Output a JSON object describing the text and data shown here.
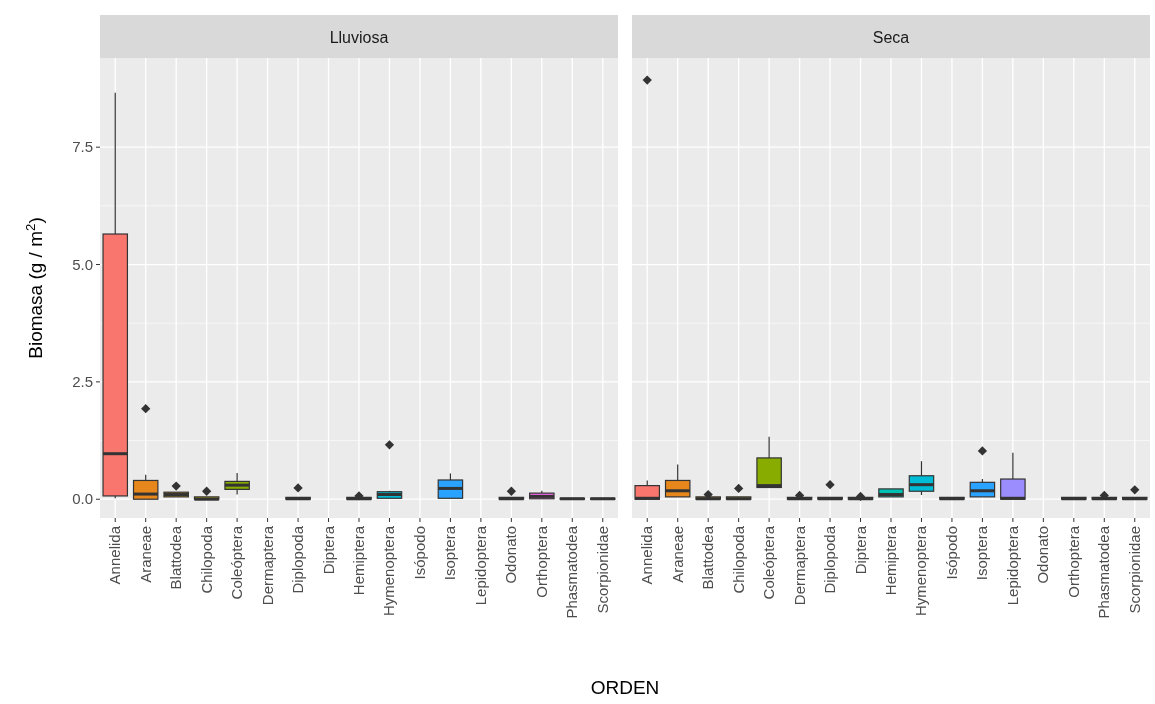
{
  "chart_data": [
    {
      "type": "box",
      "title": "Lluviosa",
      "ylabel": "Biomasa (g / m$^{2}$)",
      "xlabel": "ORDEN",
      "marker": "diamond",
      "grid": true,
      "ylim": [
        -0.4,
        9.4
      ],
      "yticks": [
        {
          "value": 0,
          "label": "0.0"
        },
        2.5,
        {
          "value": 5,
          "label": "5.0"
        },
        7.5
      ],
      "categories": [
        "Annelida",
        "Araneae",
        "Blattodea",
        "Chilopoda",
        "Coleóptera",
        "Dermaptera",
        "Diplopoda",
        "Diptera",
        "Hemiptera",
        "Hymenoptera",
        "Isópodo",
        "Isoptera",
        "Lepidoptera",
        "Odonato",
        "Orthoptera",
        "Phasmatodea",
        "Scorpionidae"
      ],
      "colors": [
        "#f8766d",
        "#e7861b",
        "#d09400",
        "#b2a100",
        "#89ac00",
        null,
        "#00bc51",
        null,
        "#00c0b2",
        "#00bcd6",
        null,
        "#29a3ff",
        null,
        "#d277ff",
        "#f166e8",
        "#ff61c7",
        "#ff689e"
      ],
      "boxes": [
        {
          "low": 0.02,
          "q1": 0.07,
          "median": 0.97,
          "q3": 5.65,
          "high": 8.66
        },
        {
          "low": 0,
          "q1": 0,
          "median": 0.11,
          "q3": 0.4,
          "high": 0.52,
          "outliers": [
            1.93
          ]
        },
        {
          "low": 0.05,
          "q1": 0.05,
          "median": 0.1,
          "q3": 0.15,
          "high": 0.15,
          "outliers": [
            0.28
          ]
        },
        {
          "low": 0,
          "q1": 0,
          "median": 0,
          "q3": 0.05,
          "high": 0.05,
          "outliers": [
            0.17
          ]
        },
        {
          "low": 0.1,
          "q1": 0.21,
          "median": 0.3,
          "q3": 0.38,
          "high": 0.56
        },
        null,
        {
          "low": 0,
          "q1": 0,
          "median": 0.01,
          "q3": 0.04,
          "high": 0.04,
          "outliers": [
            0.24
          ]
        },
        null,
        {
          "low": 0,
          "q1": 0,
          "median": 0.01,
          "q3": 0.04,
          "high": 0.04,
          "outliers": [
            0.07
          ]
        },
        {
          "low": 0.02,
          "q1": 0.02,
          "median": 0.1,
          "q3": 0.16,
          "high": 0.18,
          "outliers": [
            1.16
          ]
        },
        null,
        {
          "low": 0.02,
          "q1": 0.02,
          "median": 0.23,
          "q3": 0.41,
          "high": 0.55
        },
        null,
        {
          "low": 0,
          "q1": 0,
          "median": 0.01,
          "q3": 0.04,
          "high": 0.04,
          "outliers": [
            0.17
          ]
        },
        {
          "low": 0.01,
          "q1": 0.01,
          "median": 0.06,
          "q3": 0.13,
          "high": 0.18
        },
        {
          "low": 0,
          "q1": 0,
          "median": 0.01,
          "q3": 0.02,
          "high": 0.02
        },
        {
          "low": 0,
          "q1": 0,
          "median": 0.01,
          "q3": 0.02,
          "high": 0.02
        }
      ]
    },
    {
      "type": "box",
      "title": "Seca",
      "marker": "diamond",
      "grid": true,
      "tick_labels": "x",
      "ylim": [
        -0.4,
        9.4
      ],
      "yticks": [
        0,
        2.5,
        5,
        7.5
      ],
      "categories": [
        "Annelida",
        "Araneae",
        "Blattodea",
        "Chilopoda",
        "Coleóptera",
        "Dermaptera",
        "Diplopoda",
        "Diptera",
        "Hemiptera",
        "Hymenoptera",
        "Isópodo",
        "Isoptera",
        "Lepidoptera",
        "Odonato",
        "Orthoptera",
        "Phasmatodea",
        "Scorpionidae"
      ],
      "colors": [
        "#f8766d",
        "#e7861b",
        "#d09400",
        "#b2a100",
        "#89ac00",
        "#45b500",
        "#00bc51",
        "#00c087",
        "#00c0b2",
        "#00bcd6",
        "#00b3f2",
        "#29a3ff",
        "#9c8dff",
        null,
        "#f166e8",
        "#ff61c7",
        "#ff689e"
      ],
      "boxes": [
        {
          "low": 0,
          "q1": 0,
          "median": 0.02,
          "q3": 0.29,
          "high": 0.4,
          "outliers": [
            8.93
          ]
        },
        {
          "low": 0.05,
          "q1": 0.05,
          "median": 0.18,
          "q3": 0.4,
          "high": 0.74
        },
        {
          "low": 0,
          "q1": 0,
          "median": 0.01,
          "q3": 0.05,
          "high": 0.05,
          "outliers": [
            0.1
          ]
        },
        {
          "low": 0,
          "q1": 0,
          "median": 0.01,
          "q3": 0.05,
          "high": 0.05,
          "outliers": [
            0.23
          ]
        },
        {
          "low": 0.25,
          "q1": 0.25,
          "median": 0.29,
          "q3": 0.88,
          "high": 1.33
        },
        {
          "low": 0,
          "q1": 0,
          "median": 0.01,
          "q3": 0.04,
          "high": 0.04,
          "outliers": [
            0.08
          ]
        },
        {
          "low": 0,
          "q1": 0,
          "median": 0.01,
          "q3": 0.04,
          "high": 0.04,
          "outliers": [
            0.31
          ]
        },
        {
          "low": 0,
          "q1": 0,
          "median": 0.01,
          "q3": 0.04,
          "high": 0.04,
          "outliers": [
            0.06
          ]
        },
        {
          "low": 0.05,
          "q1": 0.05,
          "median": 0.1,
          "q3": 0.22,
          "high": 0.22
        },
        {
          "low": 0.09,
          "q1": 0.17,
          "median": 0.31,
          "q3": 0.5,
          "high": 0.81
        },
        {
          "low": 0,
          "q1": 0,
          "median": 0.01,
          "q3": 0.04,
          "high": 0.05
        },
        {
          "low": 0.05,
          "q1": 0.05,
          "median": 0.18,
          "q3": 0.36,
          "high": 0.43,
          "outliers": [
            1.03
          ]
        },
        {
          "low": 0,
          "q1": 0,
          "median": 0.02,
          "q3": 0.43,
          "high": 0.99
        },
        null,
        {
          "low": 0,
          "q1": 0,
          "median": 0.01,
          "q3": 0.04,
          "high": 0.05
        },
        {
          "low": 0,
          "q1": 0,
          "median": 0.01,
          "q3": 0.04,
          "high": 0.04,
          "outliers": [
            0.08
          ]
        },
        {
          "low": 0,
          "q1": 0,
          "median": 0.01,
          "q3": 0.04,
          "high": 0.04,
          "outliers": [
            0.2
          ]
        }
      ]
    }
  ]
}
